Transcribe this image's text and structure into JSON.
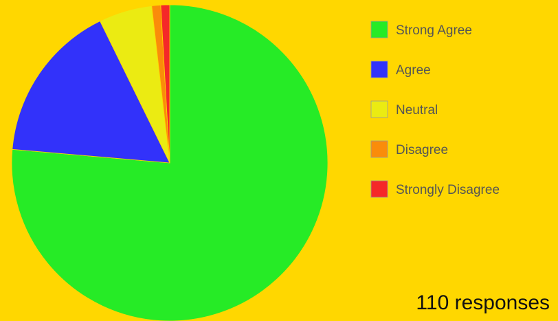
{
  "chart_data": {
    "type": "pie",
    "title": "",
    "categories": [
      "Strong Agree",
      "Agree",
      "Neutral",
      "Disagree",
      "Strongly Disagree"
    ],
    "values": [
      84,
      18,
      6,
      1,
      1
    ],
    "unit": "responses",
    "colors": [
      "#26EB26",
      "#3232FA",
      "#EBEB12",
      "#FA8C0A",
      "#F52828"
    ],
    "start_angle_deg": 0,
    "direction": "clockwise",
    "legend": {
      "placement": "right",
      "entries": [
        "Strong Agree",
        "Agree",
        "Neutral",
        "Disagree",
        "Strongly Disagree"
      ]
    },
    "annotation": "110 responses"
  }
}
